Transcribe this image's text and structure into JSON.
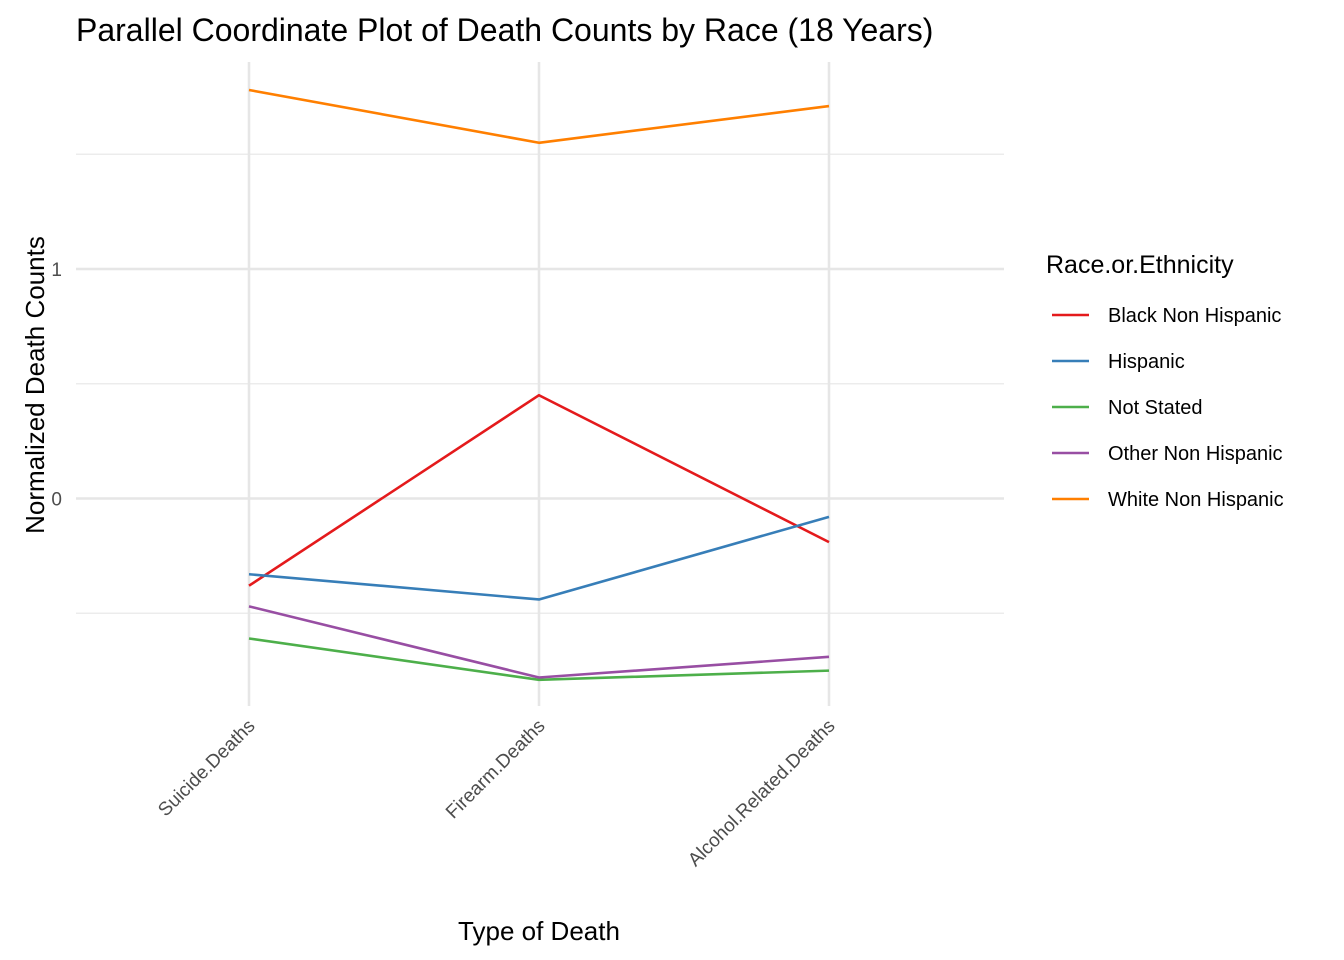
{
  "chart_data": {
    "type": "line",
    "title": "Parallel Coordinate Plot of Death Counts by Race (18 Years)",
    "xlabel": "Type of Death",
    "ylabel": "Normalized Death Counts",
    "categories": [
      "Suicide.Deaths",
      "Firearm.Deaths",
      "Alcohol.Related.Deaths"
    ],
    "ylim": [
      -0.89,
      1.91
    ],
    "yticks": [
      0,
      1
    ],
    "ytick_labels": [
      "0",
      "1"
    ],
    "y_minor_gridlines": [
      -0.5,
      0.5,
      1.5
    ],
    "grid": true,
    "legend": {
      "title": "Race.or.Ethnicity",
      "placement": "right"
    },
    "series": [
      {
        "name": "Black Non Hispanic",
        "color": "#e41a1c",
        "values": [
          -0.38,
          0.45,
          -0.19
        ]
      },
      {
        "name": "Hispanic",
        "color": "#377eb8",
        "values": [
          -0.33,
          -0.44,
          -0.08
        ]
      },
      {
        "name": "Not Stated",
        "color": "#4daf4a",
        "values": [
          -0.61,
          -0.79,
          -0.75
        ]
      },
      {
        "name": "Other Non Hispanic",
        "color": "#984ea3",
        "values": [
          -0.47,
          -0.78,
          -0.69
        ]
      },
      {
        "name": "White Non Hispanic",
        "color": "#ff7f00",
        "values": [
          1.78,
          1.55,
          1.71
        ]
      }
    ]
  }
}
